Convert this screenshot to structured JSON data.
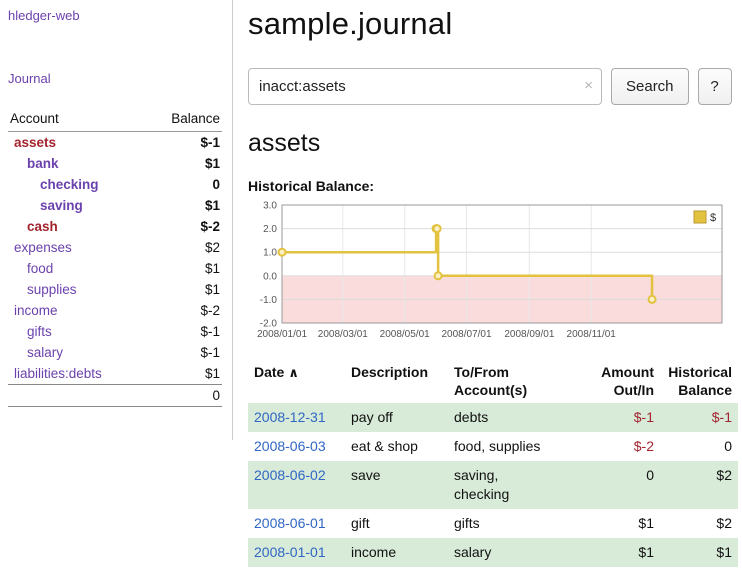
{
  "sidebar": {
    "app_title": "hledger-web",
    "journal_link": "Journal",
    "accounts": {
      "col_account": "Account",
      "col_balance": "Balance",
      "rows": [
        {
          "account": "assets",
          "balance": "$-1",
          "depth": 0,
          "bold": true,
          "account_style": "neg",
          "balance_style": "neg"
        },
        {
          "account": "bank",
          "balance": "$1",
          "depth": 1,
          "bold": true,
          "account_style": "purple",
          "balance_style": ""
        },
        {
          "account": "checking",
          "balance": "0",
          "depth": 2,
          "bold": true,
          "account_style": "purple",
          "balance_style": ""
        },
        {
          "account": "saving",
          "balance": "$1",
          "depth": 2,
          "bold": true,
          "account_style": "purple",
          "balance_style": ""
        },
        {
          "account": "cash",
          "balance": "$-2",
          "depth": 1,
          "bold": true,
          "account_style": "neg",
          "balance_style": "neg"
        },
        {
          "account": "expenses",
          "balance": "$2",
          "depth": 0,
          "bold": false,
          "account_style": "purple",
          "balance_style": ""
        },
        {
          "account": "food",
          "balance": "$1",
          "depth": 1,
          "bold": false,
          "account_style": "purple",
          "balance_style": ""
        },
        {
          "account": "supplies",
          "balance": "$1",
          "depth": 1,
          "bold": false,
          "account_style": "purple",
          "balance_style": ""
        },
        {
          "account": "income",
          "balance": "$-2",
          "depth": 0,
          "bold": false,
          "account_style": "purple",
          "balance_style": "negsoft"
        },
        {
          "account": "gifts",
          "balance": "$-1",
          "depth": 1,
          "bold": false,
          "account_style": "purple",
          "balance_style": "negsoft"
        },
        {
          "account": "salary",
          "balance": "$-1",
          "depth": 1,
          "bold": false,
          "account_style": "purple",
          "balance_style": "negsoft"
        },
        {
          "account": "liabilities:debts",
          "balance": "$1",
          "depth": 0,
          "bold": false,
          "account_style": "purple",
          "balance_style": ""
        }
      ],
      "total": "0"
    }
  },
  "header": {
    "title": "sample.journal"
  },
  "search": {
    "value": "inacct:assets",
    "clear_icon": "×",
    "button_label": "Search",
    "help_label": "?"
  },
  "account_page": {
    "heading": "assets",
    "chart_label": "Historical Balance:"
  },
  "chart_data": {
    "type": "line",
    "step": true,
    "title": "Historical Balance:",
    "x": [
      "2008-01-01",
      "2008-06-01",
      "2008-06-02",
      "2008-06-03",
      "2008-12-31"
    ],
    "series": [
      {
        "name": "$",
        "values": [
          1,
          2,
          2,
          0,
          -1
        ]
      }
    ],
    "ylim": [
      -2,
      3
    ],
    "yticks": [
      3,
      2,
      1,
      0,
      -1,
      -2
    ],
    "xticks": [
      "2008/01/01",
      "2008/03/01",
      "2008/05/01",
      "2008/07/01",
      "2008/09/01",
      "2008/11/01"
    ],
    "xlim": [
      "2008-01-01",
      "2009-03-10"
    ],
    "grid": true,
    "legend_position": "top-right",
    "line_color": "#e2c23e",
    "marker_fill": "#fbf0c6",
    "negative_region_color": "#fadcdc"
  },
  "register": {
    "headers": {
      "date": "Date",
      "sort_indicator": "∧",
      "description": "Description",
      "accounts": "To/From\nAccount(s)",
      "amount": "Amount\nOut/In",
      "balance": "Historical\nBalance"
    },
    "rows": [
      {
        "date": "2008-12-31",
        "description": "pay off",
        "accounts": "debts",
        "amount": "$-1",
        "balance": "$-1",
        "amount_negative": true,
        "balance_negative": true
      },
      {
        "date": "2008-06-03",
        "description": "eat & shop",
        "accounts": "food, supplies",
        "amount": "$-2",
        "balance": "0",
        "amount_negative": true,
        "balance_negative": false
      },
      {
        "date": "2008-06-02",
        "description": "save",
        "accounts": "saving,\nchecking",
        "amount": "0",
        "balance": "$2",
        "amount_negative": false,
        "balance_negative": false
      },
      {
        "date": "2008-06-01",
        "description": "gift",
        "accounts": "gifts",
        "amount": "$1",
        "balance": "$2",
        "amount_negative": false,
        "balance_negative": false
      },
      {
        "date": "2008-01-01",
        "description": "income",
        "accounts": "salary",
        "amount": "$1",
        "balance": "$1",
        "amount_negative": false,
        "balance_negative": false
      }
    ]
  },
  "colors": {
    "link_purple": "#6b42ad",
    "link_blue": "#2f66c4",
    "negative": "#a3242f",
    "negative_soft": "#bd6b6b",
    "row_stripe_green": "#d8ead8",
    "chart_line": "#e2c23e",
    "chart_negative_fill": "#fadcdc"
  }
}
